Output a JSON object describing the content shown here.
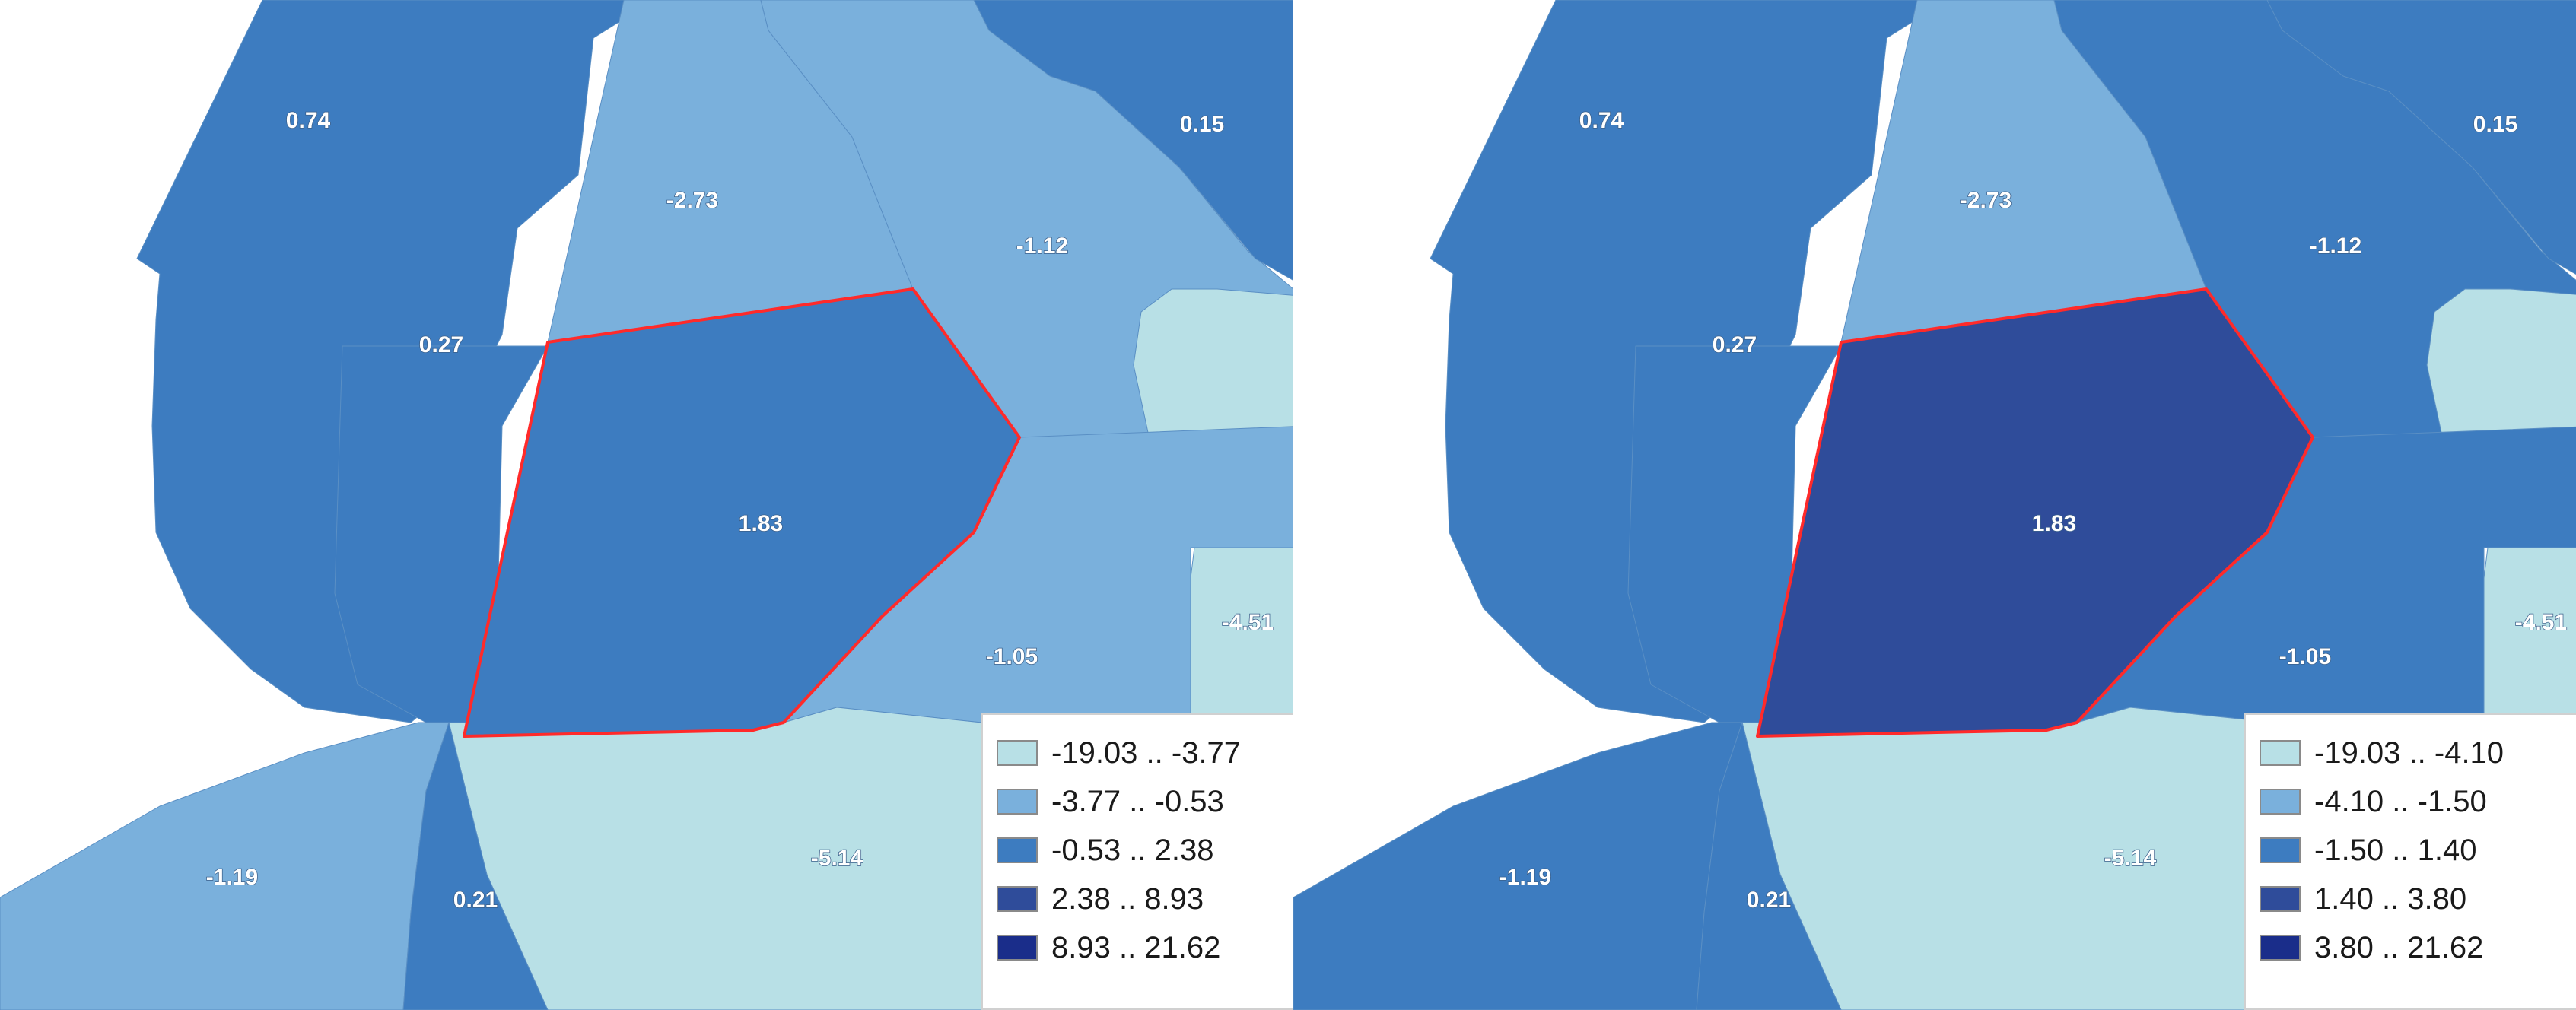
{
  "colors": {
    "class1": "#b8e0e6",
    "class2": "#7ab0dc",
    "class3": "#3d7cc0",
    "class4": "#2f4c9a",
    "class5": "#1a2d8a",
    "highlight_outline": "#ff2a2a",
    "background": "#ffffff"
  },
  "maps": [
    {
      "legend": [
        {
          "range": "-19.03 .. -3.77",
          "color": "#b8e0e6"
        },
        {
          "range": "-3.77 .. -0.53",
          "color": "#7ab0dc"
        },
        {
          "range": "-0.53 .. 2.38",
          "color": "#3d7cc0"
        },
        {
          "range": "2.38 .. 8.93",
          "color": "#2f4c9a"
        },
        {
          "range": "8.93 .. 21.62",
          "color": "#1a2d8a"
        }
      ],
      "zones": [
        {
          "id": "nw",
          "value": "0.74",
          "fill": "#3d7cc0"
        },
        {
          "id": "west",
          "value": "0.27",
          "fill": "#3d7cc0"
        },
        {
          "id": "north",
          "value": "-2.73",
          "fill": "#7ab0dc"
        },
        {
          "id": "northeast",
          "value": "-1.12",
          "fill": "#7ab0dc"
        },
        {
          "id": "ne-corner",
          "value": "0.15",
          "fill": "#3d7cc0"
        },
        {
          "id": "east",
          "value": "-4.51",
          "fill": "#b8e0e6"
        },
        {
          "id": "center",
          "value": "1.83",
          "fill": "#3d7cc0",
          "highlighted": true
        },
        {
          "id": "southeast",
          "value": "-1.05",
          "fill": "#7ab0dc"
        },
        {
          "id": "south",
          "value": "-5.14",
          "fill": "#b8e0e6"
        },
        {
          "id": "southwest",
          "value": "-1.19",
          "fill": "#7ab0dc"
        },
        {
          "id": "south-small",
          "value": "0.21",
          "fill": "#3d7cc0"
        }
      ]
    },
    {
      "legend": [
        {
          "range": "-19.03 .. -4.10",
          "color": "#b8e0e6"
        },
        {
          "range": "-4.10 .. -1.50",
          "color": "#7ab0dc"
        },
        {
          "range": "-1.50 .. 1.40",
          "color": "#3d7cc0"
        },
        {
          "range": "1.40 .. 3.80",
          "color": "#2f4c9a"
        },
        {
          "range": "3.80 .. 21.62",
          "color": "#1a2d8a"
        }
      ],
      "zones": [
        {
          "id": "nw",
          "value": "0.74",
          "fill": "#3d7cc0"
        },
        {
          "id": "west",
          "value": "0.27",
          "fill": "#3d7cc0"
        },
        {
          "id": "north",
          "value": "-2.73",
          "fill": "#7ab0dc"
        },
        {
          "id": "northeast",
          "value": "-1.12",
          "fill": "#3d7cc0"
        },
        {
          "id": "ne-corner",
          "value": "0.15",
          "fill": "#3d7cc0"
        },
        {
          "id": "east",
          "value": "-4.51",
          "fill": "#b8e0e6"
        },
        {
          "id": "center",
          "value": "1.83",
          "fill": "#2f4c9a",
          "highlighted": true
        },
        {
          "id": "southeast",
          "value": "-1.05",
          "fill": "#3d7cc0"
        },
        {
          "id": "south",
          "value": "-5.14",
          "fill": "#b8e0e6"
        },
        {
          "id": "southwest",
          "value": "-1.19",
          "fill": "#3d7cc0"
        },
        {
          "id": "south-small",
          "value": "0.21",
          "fill": "#3d7cc0"
        }
      ]
    }
  ]
}
